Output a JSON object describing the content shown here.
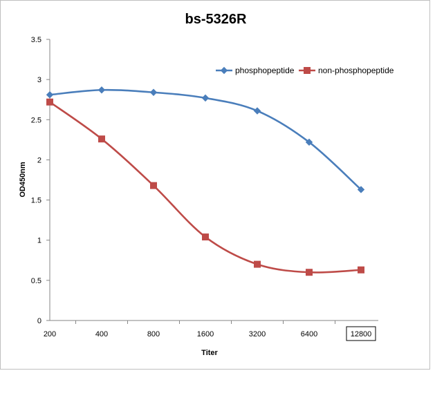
{
  "chart_data": {
    "type": "line",
    "title": "bs-5326R",
    "xlabel": "Titer",
    "ylabel": "OD450nm",
    "categories": [
      "200",
      "400",
      "800",
      "1600",
      "3200",
      "6400",
      "12800"
    ],
    "series": [
      {
        "name": "phosphopeptide",
        "color": "#4a7ebb",
        "marker": "diamond",
        "values": [
          2.81,
          2.87,
          2.84,
          2.77,
          2.61,
          2.22,
          1.63
        ]
      },
      {
        "name": "non-phosphopeptide",
        "color": "#be4b48",
        "marker": "square",
        "values": [
          2.72,
          2.26,
          1.68,
          1.04,
          0.7,
          0.6,
          0.63
        ]
      }
    ],
    "ylim": [
      0,
      3.5
    ],
    "yticks": [
      "0",
      "0.5",
      "1",
      "1.5",
      "2",
      "2.5",
      "3",
      "3.5"
    ],
    "grid": false,
    "legend_position": "top-right",
    "smooth": true,
    "boxed_tick": "12800"
  }
}
